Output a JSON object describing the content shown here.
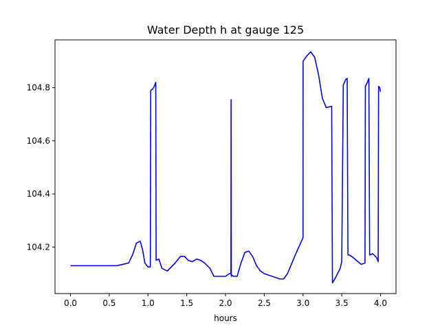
{
  "chart_data": {
    "type": "line",
    "title": "Water Depth h at gauge 125",
    "xlabel": "hours",
    "ylabel": "",
    "xlim": [
      -0.2,
      4.2
    ],
    "ylim": [
      104.025,
      104.98
    ],
    "xticks": [
      0.0,
      0.5,
      1.0,
      1.5,
      2.0,
      2.5,
      3.0,
      3.5,
      4.0
    ],
    "xtick_labels": [
      "0.0",
      "0.5",
      "1.0",
      "1.5",
      "2.0",
      "2.5",
      "3.0",
      "3.5",
      "4.0"
    ],
    "yticks": [
      104.2,
      104.4,
      104.6,
      104.8
    ],
    "ytick_labels": [
      "104.2",
      "104.4",
      "104.6",
      "104.8"
    ],
    "grid": false,
    "series": [
      {
        "color": "#0000ff",
        "x": [
          0.0,
          0.3,
          0.6,
          0.75,
          0.8,
          0.85,
          0.9,
          0.93,
          0.96,
          1.0,
          1.03,
          1.035,
          1.06,
          1.08,
          1.1,
          1.105,
          1.14,
          1.18,
          1.25,
          1.35,
          1.42,
          1.47,
          1.52,
          1.57,
          1.63,
          1.68,
          1.73,
          1.8,
          1.85,
          1.9,
          2.0,
          2.05,
          2.07,
          2.072,
          2.075,
          2.08,
          2.1,
          2.15,
          2.2,
          2.25,
          2.3,
          2.35,
          2.4,
          2.45,
          2.5,
          2.6,
          2.7,
          2.75,
          2.8,
          2.9,
          3.0,
          3.001,
          3.05,
          3.1,
          3.15,
          3.2,
          3.25,
          3.3,
          3.37,
          3.38,
          3.42,
          3.48,
          3.5,
          3.52,
          3.55,
          3.57,
          3.58,
          3.6,
          3.65,
          3.75,
          3.8,
          3.805,
          3.83,
          3.85,
          3.86,
          3.9,
          3.95,
          3.97,
          3.975,
          3.99,
          4.0
        ],
        "values": [
          104.13,
          104.13,
          104.13,
          104.14,
          104.17,
          104.215,
          104.222,
          104.19,
          104.14,
          104.125,
          104.125,
          104.79,
          104.795,
          104.805,
          104.82,
          104.15,
          104.155,
          104.12,
          104.11,
          104.14,
          104.165,
          104.165,
          104.15,
          104.145,
          104.155,
          104.15,
          104.14,
          104.12,
          104.09,
          104.09,
          104.09,
          104.1,
          104.1,
          104.755,
          104.09,
          104.095,
          104.09,
          104.09,
          104.14,
          104.18,
          104.185,
          104.165,
          104.13,
          104.11,
          104.1,
          104.09,
          104.08,
          104.08,
          104.1,
          104.17,
          104.235,
          104.9,
          104.92,
          104.935,
          104.915,
          104.85,
          104.76,
          104.725,
          104.73,
          104.065,
          104.085,
          104.12,
          104.145,
          104.81,
          104.83,
          104.835,
          104.17,
          104.17,
          104.16,
          104.135,
          104.14,
          104.805,
          104.82,
          104.835,
          104.17,
          104.175,
          104.16,
          104.145,
          104.805,
          104.8,
          104.785
        ]
      }
    ]
  }
}
